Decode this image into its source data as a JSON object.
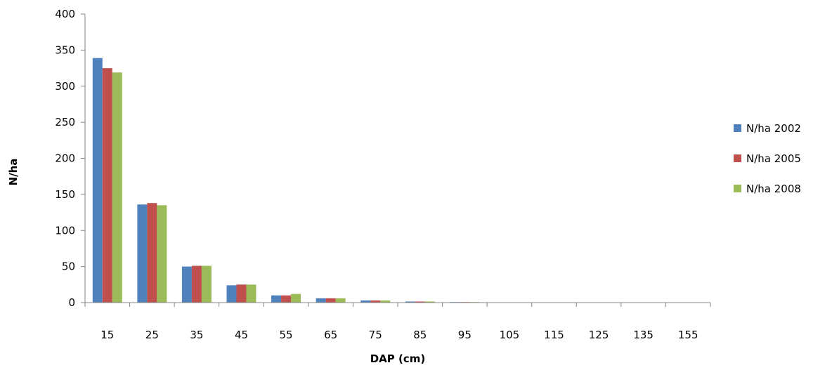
{
  "chart_data": {
    "type": "bar",
    "title": "",
    "xlabel": "DAP (cm)",
    "ylabel": "N/ha",
    "ylim": [
      0,
      400
    ],
    "yticks": [
      0,
      50,
      100,
      150,
      200,
      250,
      300,
      350,
      400
    ],
    "ytick_labels": [
      "0",
      "50",
      "100",
      "150",
      "200",
      "250",
      "300",
      "350",
      "400"
    ],
    "grid": false,
    "legend_position": "right",
    "categories": [
      "15",
      "25",
      "35",
      "45",
      "55",
      "65",
      "75",
      "85",
      "95",
      "105",
      "115",
      "125",
      "135",
      "155"
    ],
    "series": [
      {
        "name": "N/ha 2002",
        "color": "#4f81bd",
        "values": [
          339,
          136,
          50,
          24,
          10,
          6,
          3,
          1.5,
          0.8,
          0.5,
          0.3,
          0.2,
          0.2,
          0.1
        ]
      },
      {
        "name": "N/ha 2005",
        "color": "#c0504d",
        "values": [
          325,
          138,
          51,
          25,
          10,
          6,
          3,
          1.5,
          0.8,
          0.5,
          0.3,
          0.2,
          0.2,
          0.1
        ]
      },
      {
        "name": "N/ha 2008",
        "color": "#9bbb59",
        "values": [
          319,
          135,
          51,
          25,
          12,
          6,
          3,
          1.5,
          0.8,
          0.5,
          0.3,
          0.2,
          0.2,
          0.1
        ]
      }
    ]
  }
}
